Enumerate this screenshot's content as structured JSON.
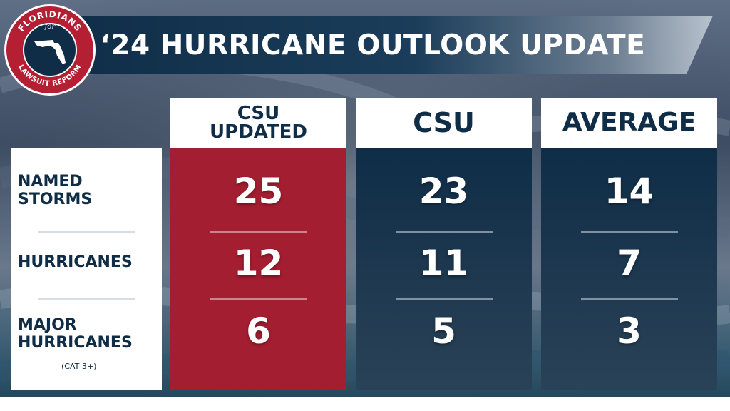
{
  "title": "‘24 HURRICANE OUTLOOK UPDATE",
  "logo": {
    "top_text": "FLORIDIANS",
    "middle_text": "for",
    "bottom_text": "LAWSUIT REFORM"
  },
  "rows": {
    "named_storms": "NAMED STORMS",
    "hurricanes": "HURRICANES",
    "major_hurricanes": "MAJOR HURRICANES",
    "major_note": "(CAT 3+)"
  },
  "columns": [
    {
      "header": "CSU UPDATED",
      "named_storms": "25",
      "hurricanes": "12",
      "major_hurricanes": "6"
    },
    {
      "header": "CSU",
      "named_storms": "23",
      "hurricanes": "11",
      "major_hurricanes": "5"
    },
    {
      "header": "AVERAGE",
      "named_storms": "14",
      "hurricanes": "7",
      "major_hurricanes": "3"
    }
  ],
  "colors": {
    "navy": "#0f2d47",
    "red": "#a41e31",
    "white": "#ffffff"
  }
}
